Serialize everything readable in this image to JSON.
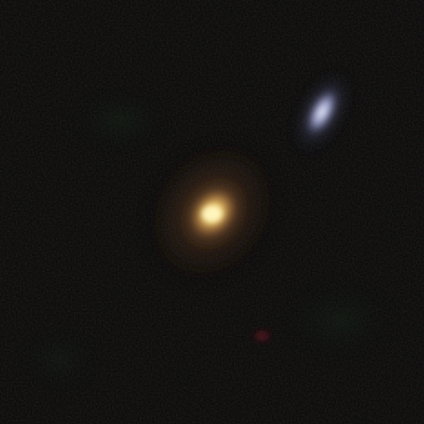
{
  "image": {
    "kind": "astronomical-sky-survey-cutout",
    "colors": {
      "background": "#080808",
      "noise_tint_red": "#2a1410",
      "noise_tint_green": "#0f2616",
      "galaxy_core": "#fff0a0",
      "galaxy_inner": "#e8c06a",
      "galaxy_halo": "#9a6a38",
      "companion_core": "#e9ecff",
      "companion_halo": "#8a90c8",
      "red_speck": "#7a1e2a"
    },
    "objects": [
      {
        "name": "elliptical-galaxy",
        "color_description": "yellow-orange"
      },
      {
        "name": "companion-galaxy",
        "color_description": "blue-white"
      }
    ]
  }
}
